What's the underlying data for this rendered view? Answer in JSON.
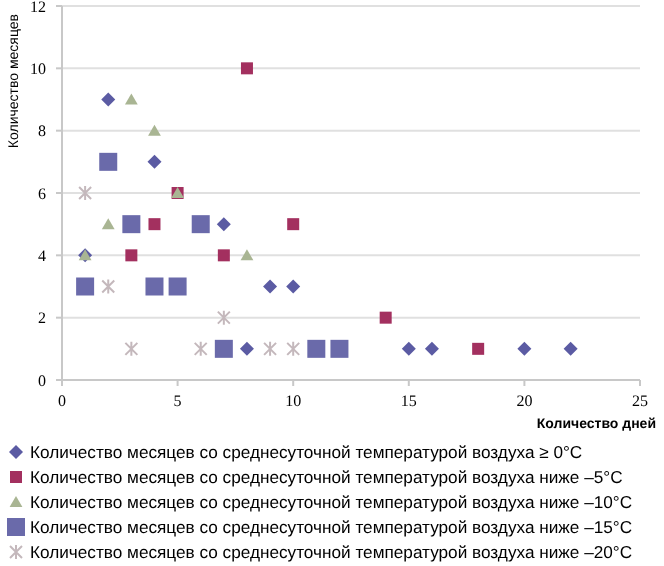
{
  "chart_data": {
    "type": "scatter",
    "xlabel": "Количество дней",
    "ylabel": "Количество месяцев",
    "xlim": [
      0,
      25
    ],
    "ylim": [
      0,
      12
    ],
    "xticks": [
      0,
      5,
      10,
      15,
      20,
      25
    ],
    "yticks": [
      0,
      2,
      4,
      6,
      8,
      10,
      12
    ],
    "grid": "y",
    "legend": "bottom",
    "series": [
      {
        "name": "Количество месяцев со среднесуточной температурой воздуха ≥ 0°C",
        "color": "#5b5ba3",
        "marker": "diamond",
        "x": [
          1,
          2,
          4,
          7,
          8,
          9,
          10,
          15,
          16,
          20,
          22
        ],
        "values": [
          4,
          9,
          7,
          5,
          1,
          3,
          3,
          1,
          1,
          1,
          1
        ]
      },
      {
        "name": "Количество месяцев со среднесуточной температурой воздуха ниже –5°C",
        "color": "#a3305f",
        "marker": "square",
        "x": [
          8,
          4,
          3,
          5,
          7,
          10,
          14,
          18
        ],
        "values": [
          10,
          5,
          4,
          6,
          4,
          5,
          2,
          1
        ]
      },
      {
        "name": "Количество месяцев со среднесуточной температурой воздуха ниже –10°C",
        "color": "#a9b593",
        "marker": "triangle",
        "x": [
          1,
          2,
          3,
          4,
          5,
          8
        ],
        "values": [
          4,
          5,
          9,
          8,
          6,
          4
        ]
      },
      {
        "name": "Количество месяцев со среднесуточной температурой воздуха ниже –15°C",
        "color": "#6a6aaa",
        "marker": "square",
        "x": [
          2,
          3,
          1,
          4,
          5,
          6,
          7,
          11,
          12
        ],
        "values": [
          7,
          5,
          3,
          3,
          3,
          5,
          1,
          1,
          1
        ]
      },
      {
        "name": "Количество месяцев со среднесуточной температурой воздуха ниже –20°C",
        "color": "#c4b8bc",
        "marker": "cross",
        "x": [
          1,
          2,
          3,
          6,
          7,
          9,
          10
        ],
        "values": [
          6,
          3,
          1,
          1,
          2,
          1,
          1
        ]
      }
    ]
  }
}
